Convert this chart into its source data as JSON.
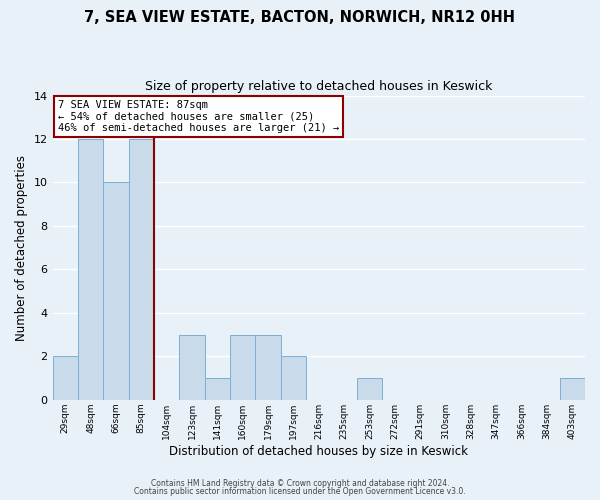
{
  "title": "7, SEA VIEW ESTATE, BACTON, NORWICH, NR12 0HH",
  "subtitle": "Size of property relative to detached houses in Keswick",
  "xlabel": "Distribution of detached houses by size in Keswick",
  "ylabel": "Number of detached properties",
  "bar_color": "#c9daea",
  "bar_edge_color": "#7bafd4",
  "bins": [
    "29sqm",
    "48sqm",
    "66sqm",
    "85sqm",
    "104sqm",
    "123sqm",
    "141sqm",
    "160sqm",
    "179sqm",
    "197sqm",
    "216sqm",
    "235sqm",
    "253sqm",
    "272sqm",
    "291sqm",
    "310sqm",
    "328sqm",
    "347sqm",
    "366sqm",
    "384sqm",
    "403sqm"
  ],
  "values": [
    2,
    12,
    10,
    12,
    0,
    3,
    1,
    3,
    3,
    2,
    0,
    0,
    1,
    0,
    0,
    0,
    0,
    0,
    0,
    0,
    1
  ],
  "property_line_x": 3.5,
  "property_line_color": "#8b0000",
  "ylim": [
    0,
    14
  ],
  "yticks": [
    0,
    2,
    4,
    6,
    8,
    10,
    12,
    14
  ],
  "annotation_title": "7 SEA VIEW ESTATE: 87sqm",
  "annotation_line1": "← 54% of detached houses are smaller (25)",
  "annotation_line2": "46% of semi-detached houses are larger (21) →",
  "annotation_box_color": "#ffffff",
  "annotation_box_edge_color": "#8b0000",
  "footer1": "Contains HM Land Registry data © Crown copyright and database right 2024.",
  "footer2": "Contains public sector information licensed under the Open Government Licence v3.0.",
  "background_color": "#e8f0f8",
  "grid_color": "#ffffff"
}
